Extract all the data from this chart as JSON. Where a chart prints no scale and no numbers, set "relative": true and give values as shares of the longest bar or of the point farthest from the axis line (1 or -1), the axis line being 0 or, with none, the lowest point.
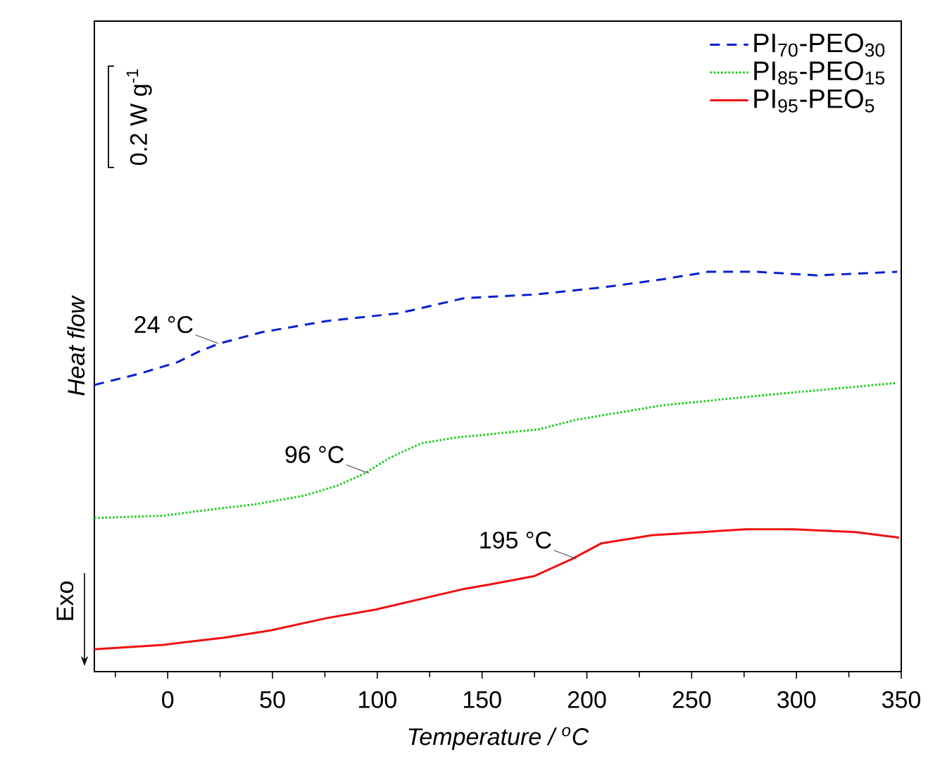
{
  "chart_data": {
    "type": "line",
    "relative": true,
    "xlabel": "Temperature / $^{o}$C",
    "ylabel": "Heat flow",
    "legend": "top right",
    "xlim": [
      -35,
      350
    ],
    "xticks": [
      {
        "value": -25,
        "label": null
      },
      0,
      {
        "value": 25,
        "label": null
      },
      50,
      {
        "value": 75,
        "label": null
      },
      100,
      {
        "value": 125,
        "label": null
      },
      150,
      {
        "value": 175,
        "label": null
      },
      200,
      {
        "value": 225,
        "label": null
      },
      250,
      {
        "value": 275,
        "label": null
      },
      300,
      {
        "value": 325,
        "label": null
      },
      350
    ],
    "series": [
      {
        "name": "PI$_{70}$-PEO$_{30}$",
        "color": "#0a1fd0",
        "line_style": "dashed",
        "x": [
          -35,
          -13.5,
          4.7,
          15.5,
          24.9,
          45,
          76,
          110,
          141.5,
          175,
          209,
          236,
          258,
          281,
          310,
          348
        ],
        "values": [
          0.717,
          0.745,
          0.774,
          0.802,
          0.821,
          0.849,
          0.877,
          0.896,
          0.934,
          0.943,
          0.962,
          0.981,
          1.0,
          1.0,
          0.991,
          1.0
        ]
      },
      {
        "name": "PI$_{85}$-PEO$_{15}$",
        "color": "#1ccc1c",
        "line_style": "dotted",
        "x": [
          -35,
          -2,
          20,
          42.5,
          65,
          81,
          94,
          106,
          121,
          137,
          177,
          195,
          236,
          288,
          348
        ],
        "values": [
          0.384,
          0.39,
          0.405,
          0.419,
          0.44,
          0.465,
          0.496,
          0.535,
          0.571,
          0.585,
          0.606,
          0.63,
          0.666,
          0.693,
          0.722
        ]
      },
      {
        "name": "PI$_{95}$-PEO$_{5}$",
        "color": "#f01010",
        "line_style": "solid",
        "x": [
          -35,
          -2,
          27,
          49,
          76,
          99,
          141.5,
          155,
          175,
          193,
          207,
          231,
          276,
          298,
          328,
          349
        ],
        "values": [
          0.056,
          0.067,
          0.085,
          0.103,
          0.134,
          0.155,
          0.207,
          0.219,
          0.239,
          0.282,
          0.321,
          0.341,
          0.356,
          0.356,
          0.349,
          0.335
        ]
      }
    ],
    "annotations": [
      {
        "text": "24 °C",
        "x": 24,
        "y": 0.821
      },
      {
        "text": "96 °C",
        "x": 96,
        "y": 0.496
      },
      {
        "text": "195 °C",
        "x": 195,
        "y": 0.282
      },
      "Exo",
      "0.2 W g$^{-1}$"
    ]
  }
}
